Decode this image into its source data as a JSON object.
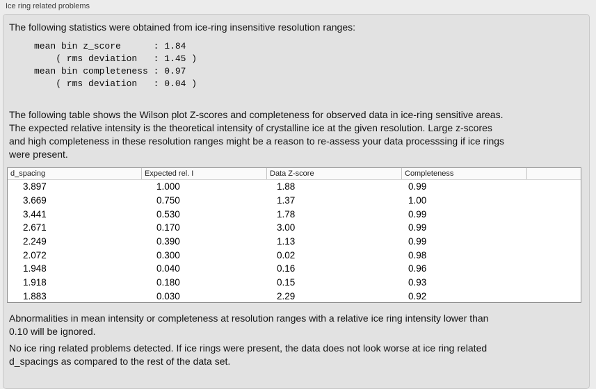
{
  "panel": {
    "title": "Ice ring related problems",
    "intro_text": "The following statistics were obtained from ice-ring insensitive resolution ranges:",
    "stats_block": "mean bin z_score      : 1.84\n    ( rms deviation   : 1.45 )\nmean bin completeness : 0.97\n    ( rms deviation   : 0.04 )",
    "stats_values": {
      "mean_bin_z_score": "1.84",
      "z_score_rms_deviation": "1.45",
      "mean_bin_completeness": "0.97",
      "completeness_rms_deviation": "0.04"
    },
    "table_description": "The following table shows the Wilson plot Z-scores and completeness for observed data in ice-ring sensitive areas.\nThe expected relative intensity is the theoretical intensity of crystalline ice at the given resolution. Large z-scores\nand high completeness in these resolution ranges might be a reason to re-assess your data processsing if ice rings\nwere present.",
    "ignore_note": "Abnormalities in mean intensity or completeness at resolution ranges with a relative ice ring intensity lower than\n0.10 will be ignored.",
    "result_text": "No ice ring related problems detected. If ice rings were present, the data does not look worse at ice ring related\nd_spacings as compared to the rest of the data set."
  },
  "chart_data": {
    "type": "table",
    "columns": [
      "d_spacing",
      "Expected rel. I",
      "Data Z-score",
      "Completeness"
    ],
    "rows": [
      [
        "3.897",
        "1.000",
        "1.88",
        "0.99"
      ],
      [
        "3.669",
        "0.750",
        "1.37",
        "1.00"
      ],
      [
        "3.441",
        "0.530",
        "1.78",
        "0.99"
      ],
      [
        "2.671",
        "0.170",
        "3.00",
        "0.99"
      ],
      [
        "2.249",
        "0.390",
        "1.13",
        "0.99"
      ],
      [
        "2.072",
        "0.300",
        "0.02",
        "0.98"
      ],
      [
        "1.948",
        "0.040",
        "0.16",
        "0.96"
      ],
      [
        "1.918",
        "0.180",
        "0.15",
        "0.93"
      ],
      [
        "1.883",
        "0.030",
        "2.29",
        "0.92"
      ]
    ]
  }
}
